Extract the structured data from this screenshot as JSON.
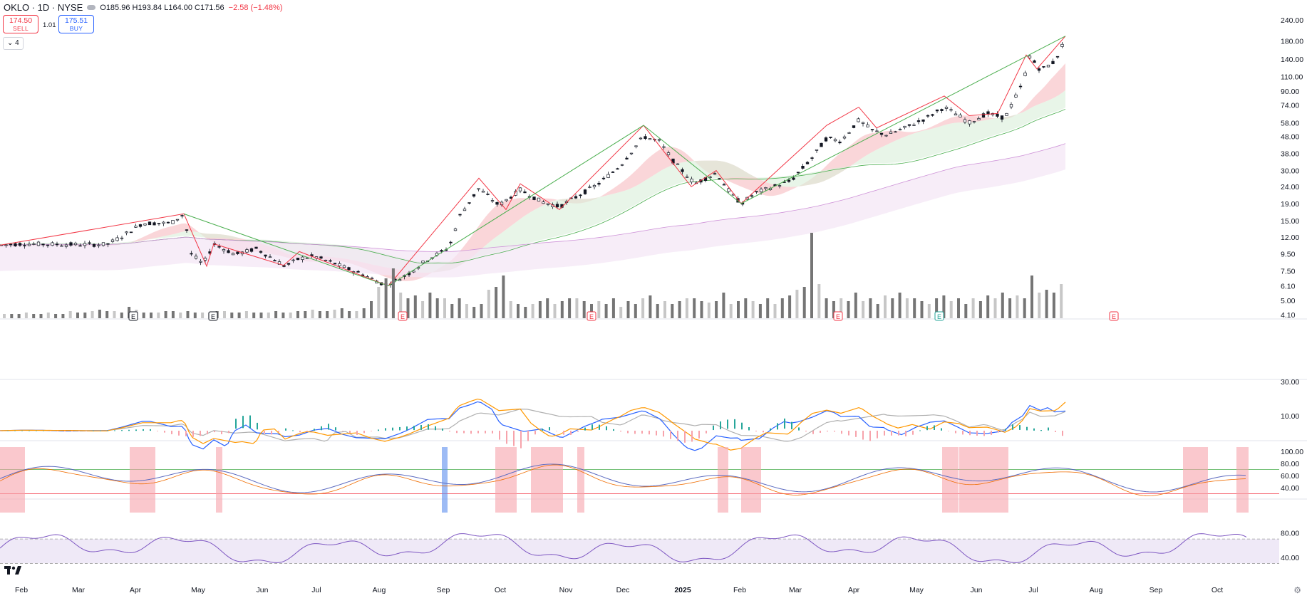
{
  "header": {
    "symbol": "OKLO · 1D · NYSE",
    "ohlc": {
      "o_label": "O",
      "o": "185.96",
      "h_label": "H",
      "h": "193.84",
      "l_label": "L",
      "l": "164.00",
      "c_label": "C",
      "c": "171.56"
    },
    "change": "−2.58 (−1.48%)",
    "sell_price": "174.50",
    "sell_label": "SELL",
    "buy_price": "175.51",
    "buy_label": "BUY",
    "spread": "1.01",
    "indicators_toggle": "⌄ 4"
  },
  "colors": {
    "up": "#26a69a",
    "down": "#f23645",
    "candle": "#131722",
    "zigzag": "#f23645",
    "trend": "#4caf50",
    "band_red": "#f8c8cc",
    "band_blue": "#c6d6f7",
    "band_green": "#d8efd9",
    "band_purple": "#f3e5f5",
    "rsi": "#7e57c2",
    "volume": "#9e9e9e"
  },
  "chart_data": [
    {
      "type": "line",
      "name_hidden": "price",
      "scale": "log",
      "ylim": [
        4.1,
        240
      ],
      "y_ticks": [
        "240.00",
        "180.00",
        "140.00",
        "110.00",
        "90.00",
        "74.00",
        "58.00",
        "48.00",
        "38.00",
        "30.00",
        "24.00",
        "19.00",
        "15.00",
        "12.00",
        "9.50",
        "7.50",
        "6.10",
        "5.00",
        "4.10"
      ],
      "x_labels": [
        "Feb",
        "Mar",
        "Apr",
        "May",
        "Jun",
        "Jul",
        "Aug",
        "Sep",
        "Oct",
        "Nov",
        "Dec",
        "2025",
        "Feb",
        "Mar",
        "Apr",
        "May",
        "Jun",
        "Jul",
        "Aug",
        "Sep",
        "Oct"
      ],
      "price_path": [
        [
          0,
          10.7
        ],
        [
          30,
          10.9
        ],
        [
          90,
          10.8
        ],
        [
          150,
          10.8
        ],
        [
          170,
          12.0
        ],
        [
          200,
          14.5
        ],
        [
          240,
          14.5
        ],
        [
          258,
          16.5
        ],
        [
          268,
          9.5
        ],
        [
          285,
          8.2
        ],
        [
          300,
          10.9
        ],
        [
          330,
          9.4
        ],
        [
          360,
          10.2
        ],
        [
          400,
          8.0
        ],
        [
          420,
          8.9
        ],
        [
          440,
          9.2
        ],
        [
          470,
          8.3
        ],
        [
          510,
          7.1
        ],
        [
          540,
          6.2
        ],
        [
          560,
          6.7
        ],
        [
          575,
          7.3
        ],
        [
          600,
          8.8
        ],
        [
          630,
          10.3
        ],
        [
          645,
          16.0
        ],
        [
          672,
          23.5
        ],
        [
          700,
          18.5
        ],
        [
          730,
          23.0
        ],
        [
          760,
          19.5
        ],
        [
          785,
          18.2
        ],
        [
          810,
          21.0
        ],
        [
          840,
          25.0
        ],
        [
          870,
          32.0
        ],
        [
          903,
          48.0
        ],
        [
          925,
          45.0
        ],
        [
          945,
          34.0
        ],
        [
          975,
          25.0
        ],
        [
          1005,
          29.0
        ],
        [
          1025,
          22.0
        ],
        [
          1040,
          19.0
        ],
        [
          1060,
          22.0
        ],
        [
          1085,
          24.0
        ],
        [
          1110,
          26.0
        ],
        [
          1140,
          36.0
        ],
        [
          1160,
          47.0
        ],
        [
          1180,
          45.0
        ],
        [
          1205,
          60.0
        ],
        [
          1225,
          52.0
        ],
        [
          1245,
          49.0
        ],
        [
          1270,
          54.0
        ],
        [
          1300,
          62.0
        ],
        [
          1325,
          72.0
        ],
        [
          1345,
          64.0
        ],
        [
          1360,
          58.0
        ],
        [
          1385,
          66.0
        ],
        [
          1410,
          62.0
        ],
        [
          1435,
          100.0
        ],
        [
          1445,
          145.0
        ],
        [
          1460,
          120.0
        ],
        [
          1480,
          135.0
        ],
        [
          1495,
          185.0
        ]
      ],
      "zigzag": [
        [
          0,
          10.7
        ],
        [
          258,
          16.5
        ],
        [
          290,
          8.0
        ],
        [
          300,
          10.9
        ],
        [
          398,
          8.1
        ],
        [
          420,
          9.8
        ],
        [
          545,
          6.1
        ],
        [
          672,
          27.0
        ],
        [
          710,
          17.5
        ],
        [
          730,
          25.0
        ],
        [
          785,
          17.5
        ],
        [
          903,
          56.0
        ],
        [
          970,
          24.0
        ],
        [
          1005,
          30.0
        ],
        [
          1040,
          19.0
        ],
        [
          1160,
          56.0
        ],
        [
          1205,
          72.0
        ],
        [
          1230,
          54.0
        ],
        [
          1325,
          84.0
        ],
        [
          1360,
          64.0
        ],
        [
          1400,
          66.0
        ],
        [
          1440,
          148.0
        ],
        [
          1455,
          122.0
        ],
        [
          1495,
          192.0
        ]
      ],
      "trendlines": [
        [
          [
            258,
            16.5
          ],
          [
            545,
            6.1
          ]
        ],
        [
          [
            545,
            6.1
          ],
          [
            903,
            56.0
          ]
        ],
        [
          [
            903,
            56.0
          ],
          [
            1040,
            19.0
          ]
        ],
        [
          [
            1040,
            19.0
          ],
          [
            1495,
            192.0
          ]
        ]
      ]
    },
    {
      "type": "bar",
      "name_hidden": "volume",
      "values": [
        3,
        3,
        3,
        4,
        3,
        3,
        4,
        3,
        3,
        5,
        4,
        4,
        5,
        6,
        5,
        5,
        4,
        8,
        6,
        4,
        4,
        4,
        5,
        5,
        4,
        5,
        4,
        4,
        4,
        5,
        5,
        4,
        4,
        5,
        4,
        4,
        4,
        5,
        4,
        4,
        5,
        5,
        6,
        5,
        5,
        6,
        7,
        5,
        5,
        7,
        12,
        22,
        28,
        35,
        18,
        14,
        16,
        12,
        18,
        14,
        14,
        10,
        14,
        10,
        8,
        10,
        20,
        22,
        30,
        12,
        10,
        8,
        10,
        12,
        14,
        10,
        12,
        14,
        14,
        12,
        10,
        12,
        10,
        14,
        8,
        12,
        10,
        14,
        16,
        10,
        12,
        10,
        12,
        14,
        14,
        12,
        11,
        12,
        18,
        10,
        12,
        14,
        12,
        10,
        14,
        10,
        14,
        16,
        20,
        22,
        60,
        24,
        14,
        12,
        14,
        12,
        18,
        12,
        14,
        10,
        16,
        14,
        18,
        14,
        14,
        12,
        10,
        14,
        16,
        12,
        14,
        10,
        14,
        12,
        16,
        14,
        18,
        14,
        16,
        14,
        30,
        18,
        20,
        18,
        24
      ],
      "earnings_markers": [
        "E",
        "E",
        "E",
        "E",
        "E",
        "E",
        "E",
        "E"
      ]
    },
    {
      "type": "line",
      "name_hidden": "macd",
      "y_ticks": [
        "30.00",
        "10.00"
      ]
    },
    {
      "type": "area",
      "name_hidden": "oscillator",
      "y_ticks": [
        "100.00",
        "80.00",
        "60.00",
        "40.00"
      ],
      "levels": [
        70,
        30
      ]
    },
    {
      "type": "line",
      "name_hidden": "rsi",
      "y_ticks": [
        "80.00",
        "40.00"
      ],
      "band": [
        30,
        70
      ]
    }
  ]
}
